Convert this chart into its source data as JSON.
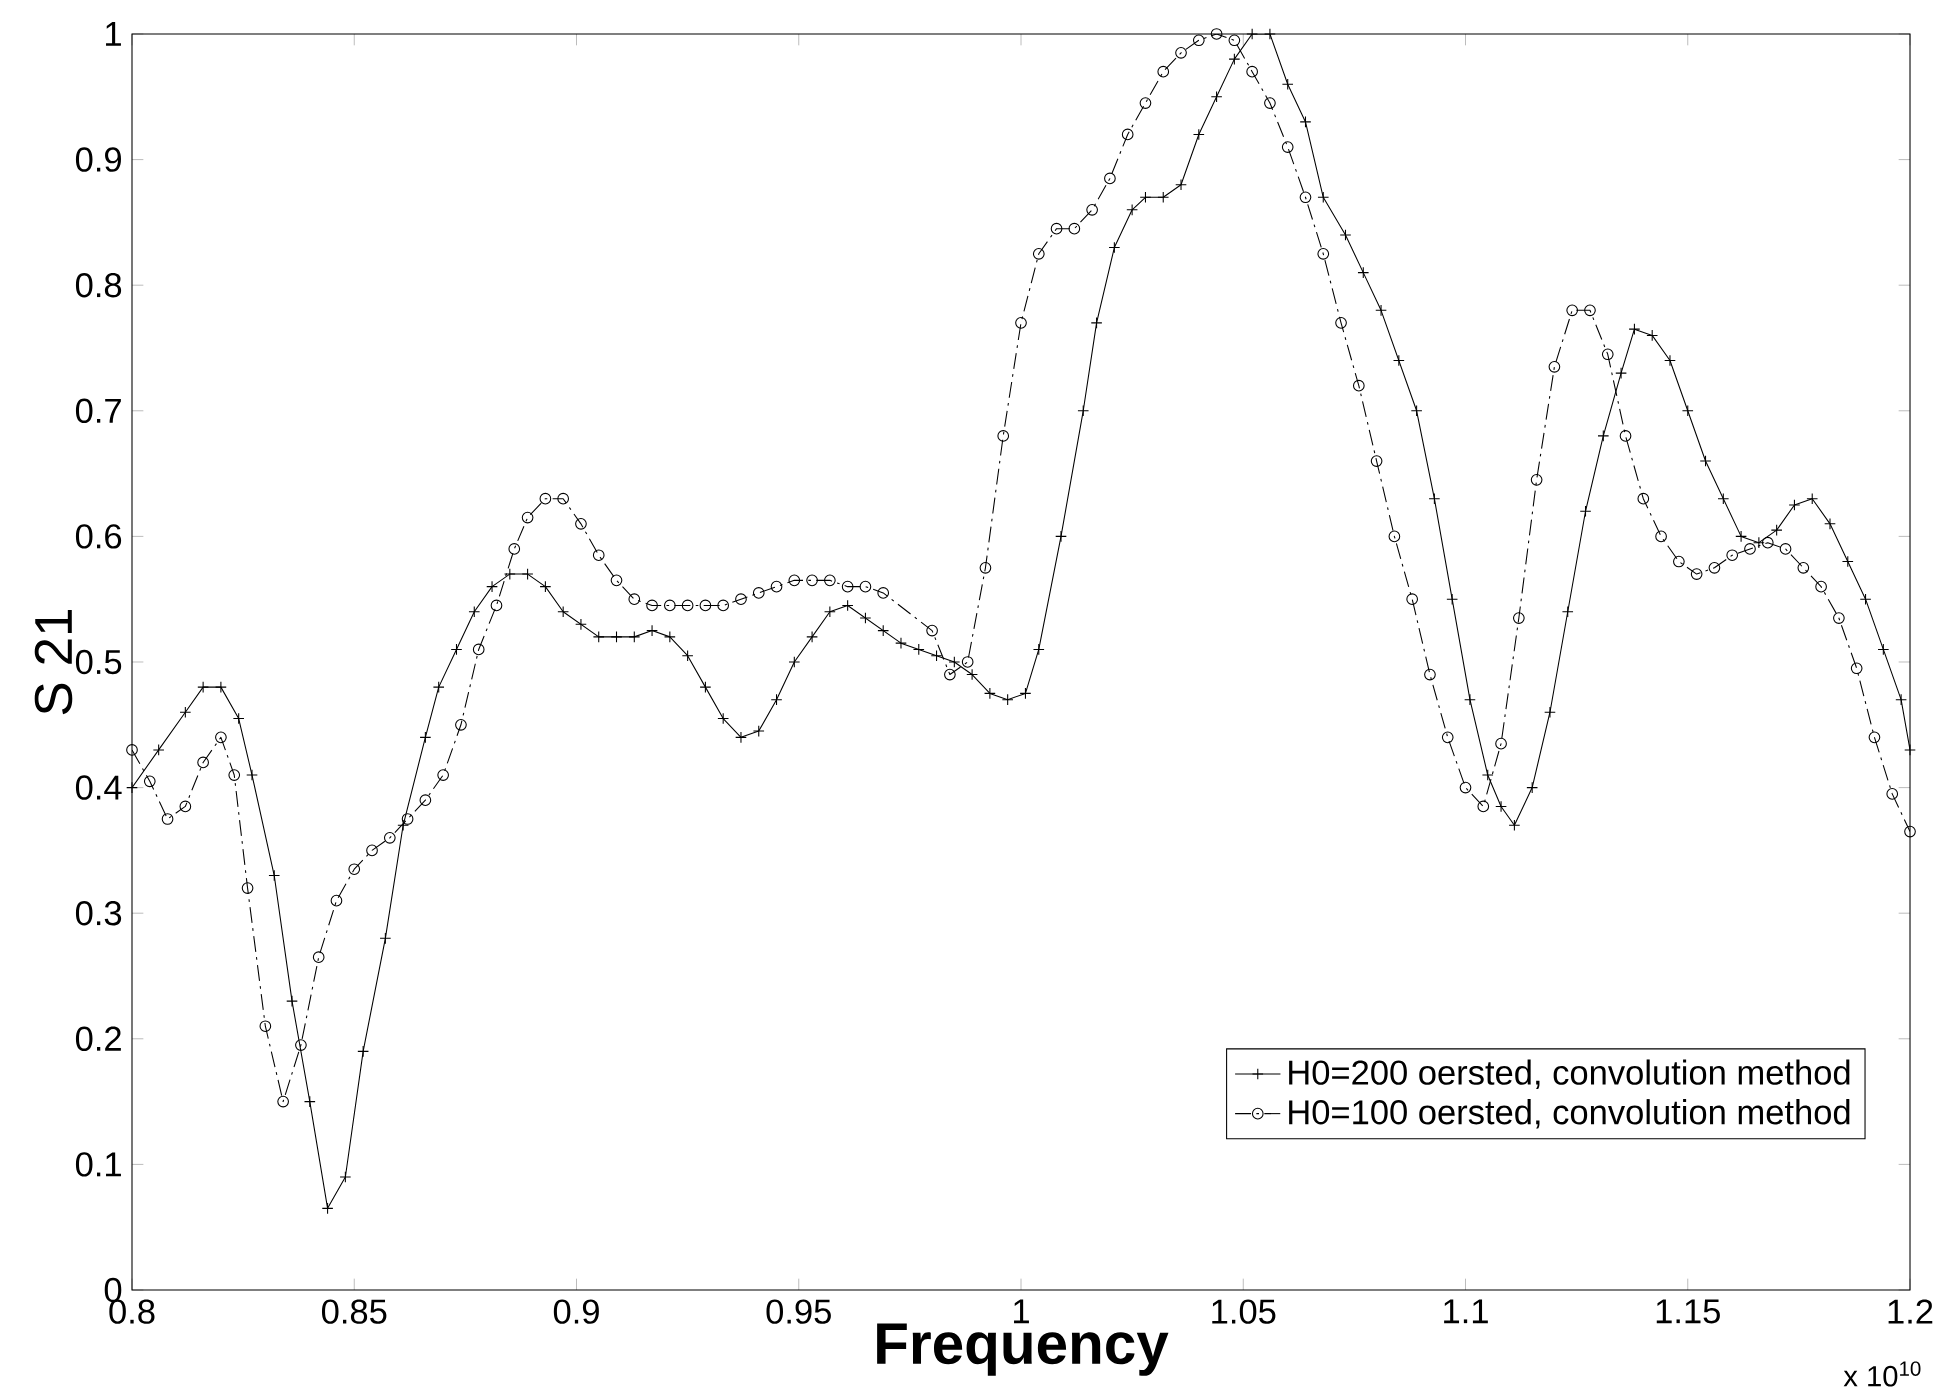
{
  "chart_data": {
    "type": "line",
    "xlabel": "Frequency",
    "ylabel": "S 21",
    "annotations": [
      "x 10$^{10}$"
    ],
    "xlim": [
      0.8,
      1.2
    ],
    "ylim": [
      0,
      1
    ],
    "xticks": [
      0.8,
      0.85,
      0.9,
      0.95,
      1,
      1.05,
      1.1,
      1.15,
      1.2
    ],
    "yticks": [
      0,
      0.1,
      0.2,
      0.3,
      0.4,
      0.5,
      0.6,
      0.7,
      0.8,
      0.9,
      1
    ],
    "grid": false,
    "legend": "bottom right",
    "series": [
      {
        "name": "H0=200 oersted, convolution method",
        "color": "#000000",
        "marker": "cross",
        "line_style": "solid",
        "x": [
          0.8,
          0.806,
          0.812,
          0.816,
          0.82,
          0.824,
          0.827,
          0.832,
          0.836,
          0.84,
          0.844,
          0.848,
          0.852,
          0.857,
          0.861,
          0.866,
          0.869,
          0.873,
          0.877,
          0.881,
          0.885,
          0.889,
          0.893,
          0.897,
          0.901,
          0.905,
          0.909,
          0.913,
          0.917,
          0.921,
          0.925,
          0.929,
          0.933,
          0.937,
          0.941,
          0.945,
          0.949,
          0.953,
          0.957,
          0.961,
          0.965,
          0.969,
          0.973,
          0.977,
          0.981,
          0.985,
          0.989,
          0.993,
          0.997,
          1.001,
          1.004,
          1.009,
          1.014,
          1.017,
          1.021,
          1.025,
          1.028,
          1.032,
          1.036,
          1.04,
          1.044,
          1.048,
          1.052,
          1.056,
          1.06,
          1.064,
          1.068,
          1.073,
          1.077,
          1.081,
          1.085,
          1.089,
          1.093,
          1.097,
          1.101,
          1.105,
          1.108,
          1.111,
          1.115,
          1.119,
          1.123,
          1.127,
          1.131,
          1.135,
          1.138,
          1.142,
          1.146,
          1.15,
          1.154,
          1.158,
          1.162,
          1.166,
          1.17,
          1.174,
          1.178,
          1.182,
          1.186,
          1.19,
          1.194,
          1.198,
          1.2
        ],
        "values": [
          0.4,
          0.43,
          0.46,
          0.48,
          0.48,
          0.455,
          0.41,
          0.33,
          0.23,
          0.15,
          0.065,
          0.09,
          0.19,
          0.28,
          0.37,
          0.44,
          0.48,
          0.51,
          0.54,
          0.56,
          0.57,
          0.57,
          0.56,
          0.54,
          0.53,
          0.52,
          0.52,
          0.52,
          0.525,
          0.52,
          0.505,
          0.48,
          0.455,
          0.44,
          0.445,
          0.47,
          0.5,
          0.52,
          0.54,
          0.545,
          0.535,
          0.525,
          0.515,
          0.51,
          0.505,
          0.5,
          0.49,
          0.475,
          0.47,
          0.475,
          0.51,
          0.6,
          0.7,
          0.77,
          0.83,
          0.86,
          0.87,
          0.87,
          0.88,
          0.92,
          0.95,
          0.98,
          1,
          1,
          0.96,
          0.93,
          0.87,
          0.84,
          0.81,
          0.78,
          0.74,
          0.7,
          0.63,
          0.55,
          0.47,
          0.41,
          0.385,
          0.37,
          0.4,
          0.46,
          0.54,
          0.62,
          0.68,
          0.73,
          0.765,
          0.76,
          0.74,
          0.7,
          0.66,
          0.63,
          0.6,
          0.595,
          0.605,
          0.625,
          0.63,
          0.61,
          0.58,
          0.55,
          0.51,
          0.47,
          0.43
        ]
      },
      {
        "name": "H0=100 oersted, convolution method",
        "color": "#000000",
        "marker": "circle",
        "line_style": "dashed",
        "x": [
          0.8,
          0.804,
          0.808,
          0.812,
          0.816,
          0.82,
          0.823,
          0.826,
          0.83,
          0.834,
          0.838,
          0.842,
          0.846,
          0.85,
          0.854,
          0.858,
          0.862,
          0.866,
          0.87,
          0.874,
          0.878,
          0.882,
          0.886,
          0.889,
          0.893,
          0.897,
          0.901,
          0.905,
          0.909,
          0.913,
          0.917,
          0.921,
          0.925,
          0.929,
          0.933,
          0.937,
          0.941,
          0.945,
          0.949,
          0.953,
          0.957,
          0.961,
          0.965,
          0.969,
          0.98,
          0.984,
          0.988,
          0.992,
          0.996,
          1.0,
          1.004,
          1.008,
          1.012,
          1.016,
          1.02,
          1.024,
          1.028,
          1.032,
          1.036,
          1.04,
          1.044,
          1.048,
          1.052,
          1.056,
          1.06,
          1.064,
          1.068,
          1.072,
          1.076,
          1.08,
          1.084,
          1.088,
          1.092,
          1.096,
          1.1,
          1.104,
          1.108,
          1.112,
          1.116,
          1.12,
          1.124,
          1.128,
          1.132,
          1.136,
          1.14,
          1.144,
          1.148,
          1.152,
          1.156,
          1.16,
          1.164,
          1.168,
          1.172,
          1.176,
          1.18,
          1.184,
          1.188,
          1.192,
          1.196,
          1.2
        ],
        "values": [
          0.43,
          0.405,
          0.375,
          0.385,
          0.42,
          0.44,
          0.41,
          0.32,
          0.21,
          0.15,
          0.195,
          0.265,
          0.31,
          0.335,
          0.35,
          0.36,
          0.375,
          0.39,
          0.41,
          0.45,
          0.51,
          0.545,
          0.59,
          0.615,
          0.63,
          0.63,
          0.61,
          0.585,
          0.565,
          0.55,
          0.545,
          0.545,
          0.545,
          0.545,
          0.545,
          0.55,
          0.555,
          0.56,
          0.565,
          0.565,
          0.565,
          0.56,
          0.56,
          0.555,
          0.525,
          0.49,
          0.5,
          0.575,
          0.68,
          0.77,
          0.825,
          0.845,
          0.845,
          0.86,
          0.885,
          0.92,
          0.945,
          0.97,
          0.985,
          0.995,
          1,
          0.995,
          0.97,
          0.945,
          0.91,
          0.87,
          0.825,
          0.77,
          0.72,
          0.66,
          0.6,
          0.55,
          0.49,
          0.44,
          0.4,
          0.385,
          0.435,
          0.535,
          0.645,
          0.735,
          0.78,
          0.78,
          0.745,
          0.68,
          0.63,
          0.6,
          0.58,
          0.57,
          0.575,
          0.585,
          0.59,
          0.595,
          0.59,
          0.575,
          0.56,
          0.535,
          0.495,
          0.44,
          0.395,
          0.365
        ]
      }
    ]
  }
}
